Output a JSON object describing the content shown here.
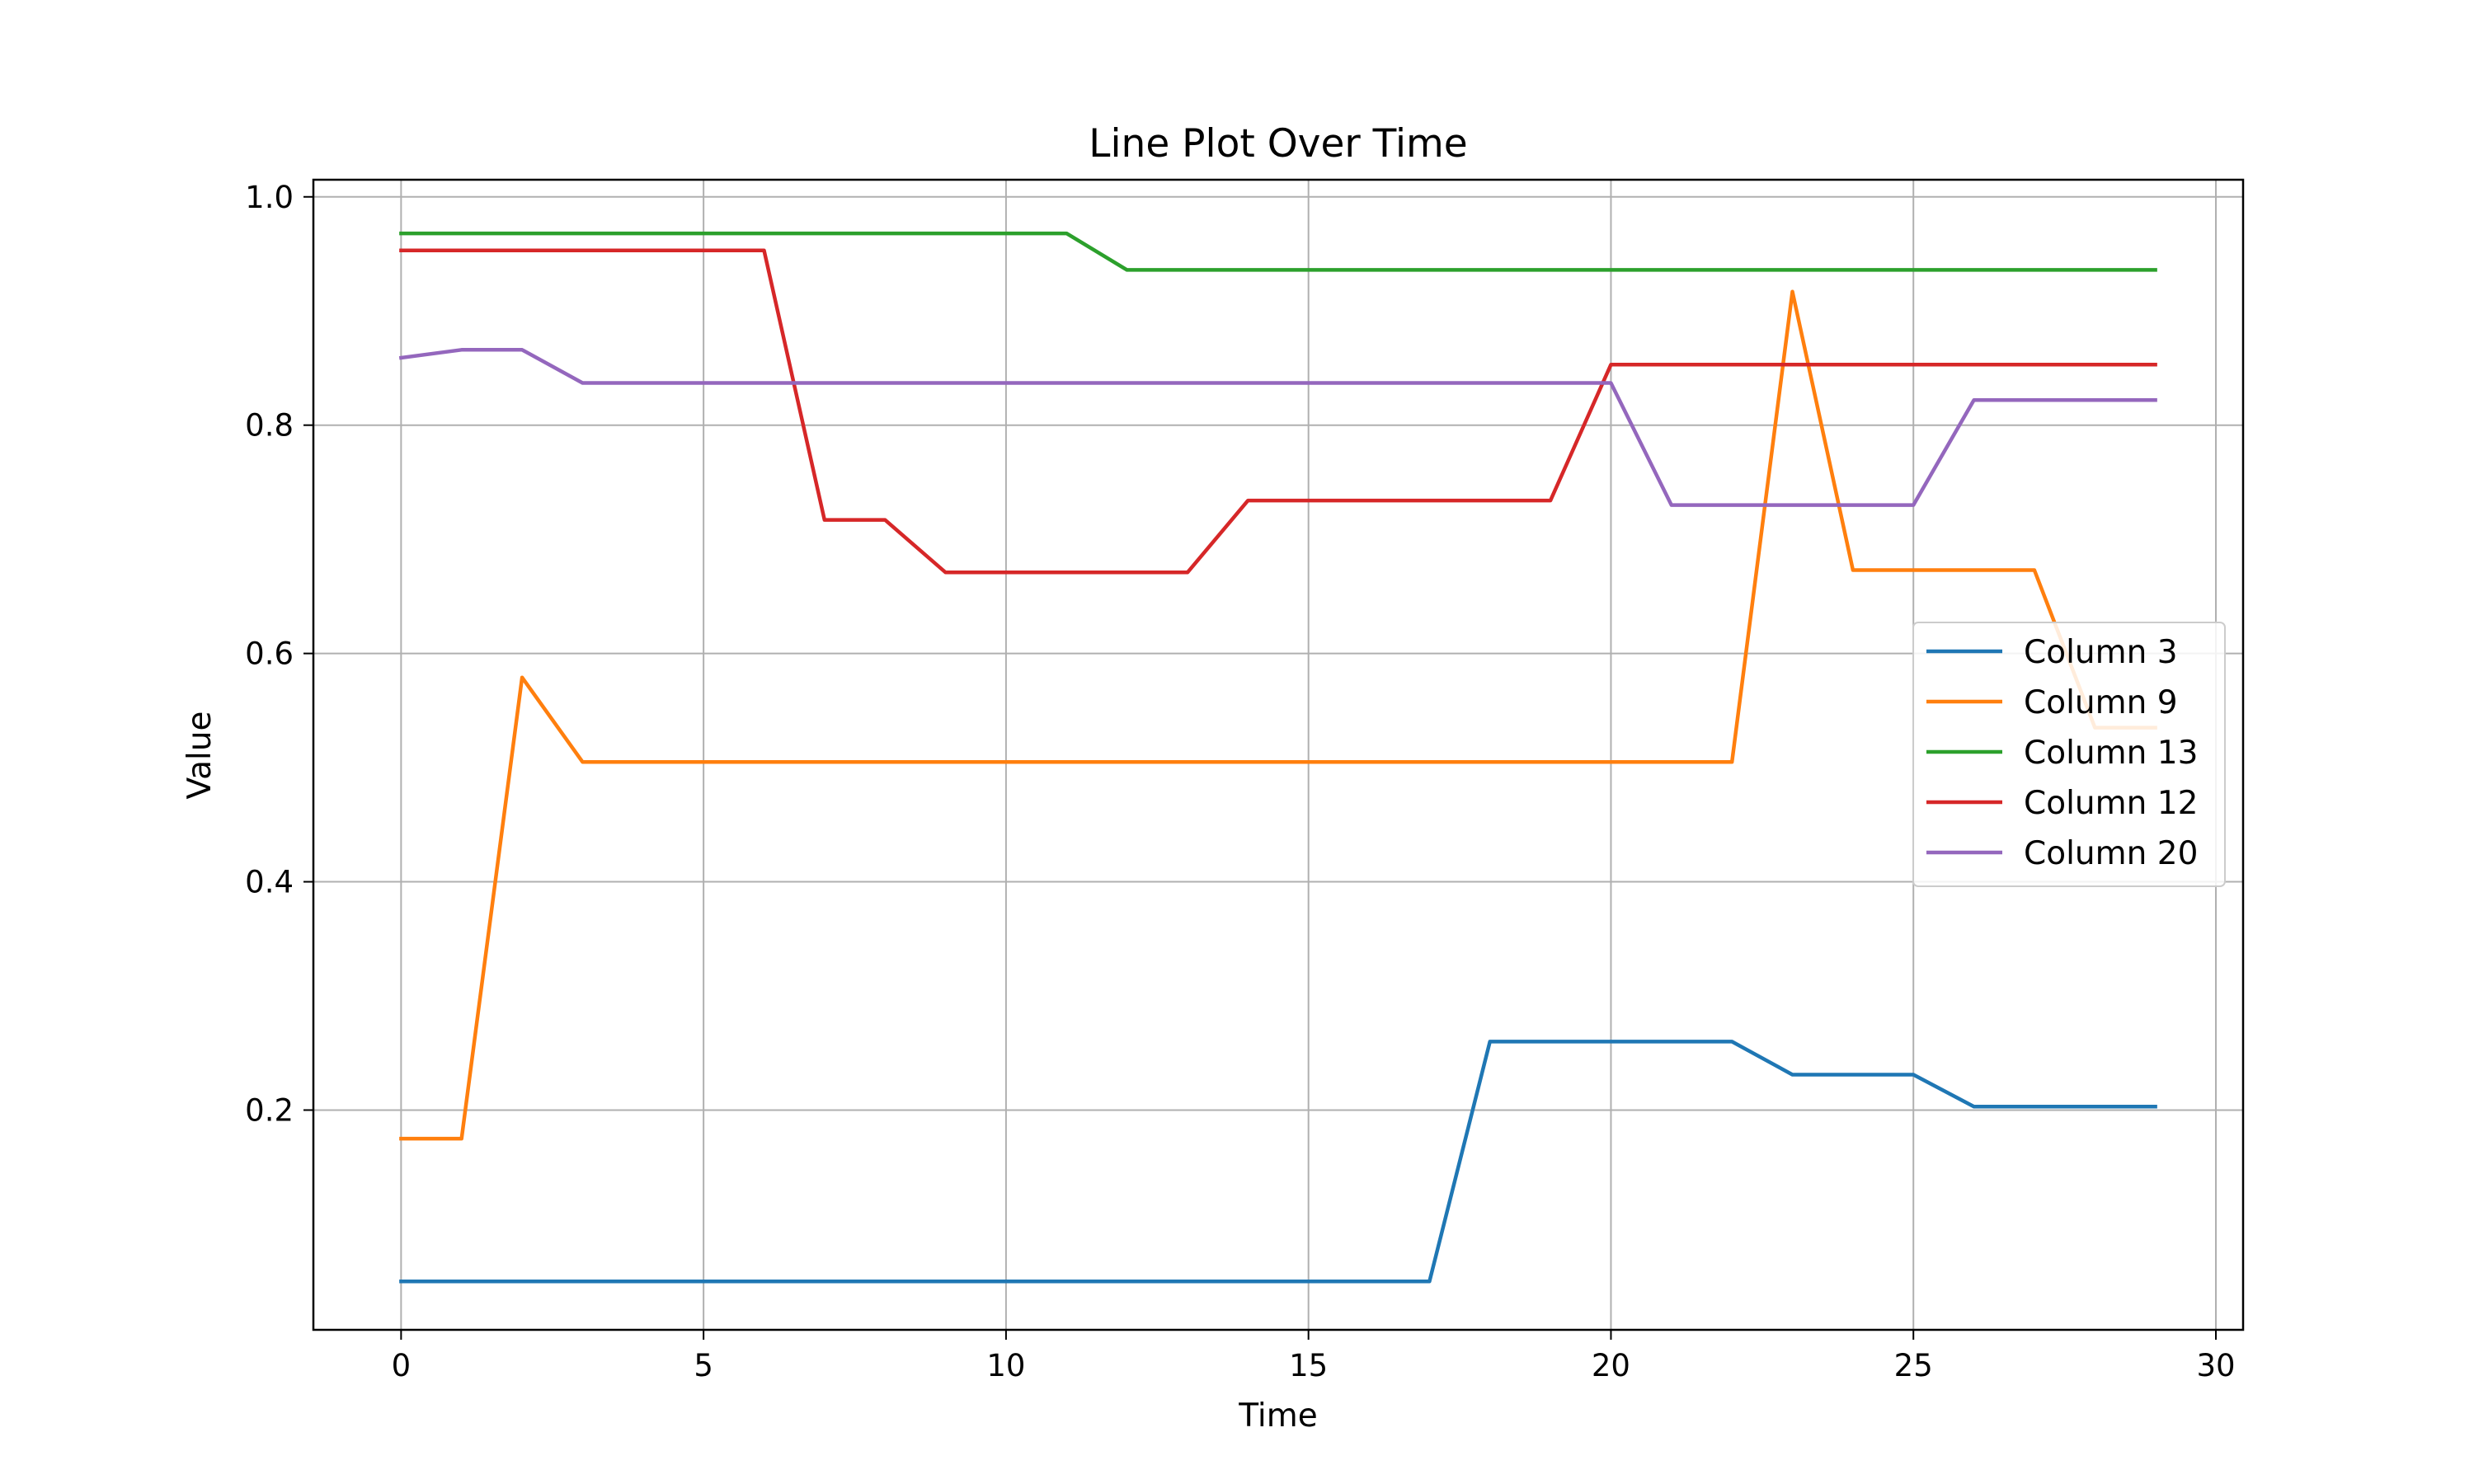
{
  "chart_data": {
    "type": "line",
    "title": "Line Plot Over Time",
    "xlabel": "Time",
    "ylabel": "Value",
    "xlim": [
      -1.45,
      30.45
    ],
    "ylim": [
      0.0075,
      1.015
    ],
    "xticks": [
      0,
      5,
      10,
      15,
      20,
      25,
      30
    ],
    "xtick_labels": [
      "0",
      "5",
      "10",
      "15",
      "20",
      "25",
      "30"
    ],
    "yticks": [
      0.2,
      0.4,
      0.6,
      0.8,
      1.0
    ],
    "ytick_labels": [
      "0.2",
      "0.4",
      "0.6",
      "0.8",
      "1.0"
    ],
    "grid": true,
    "legend_position": "center-right",
    "x": [
      0,
      1,
      2,
      3,
      4,
      5,
      6,
      7,
      8,
      9,
      10,
      11,
      12,
      13,
      14,
      15,
      16,
      17,
      18,
      19,
      20,
      21,
      22,
      23,
      24,
      25,
      26,
      27,
      28,
      29
    ],
    "series": [
      {
        "name": "Column 3",
        "color": "#1f77b4",
        "values": [
          0.05,
          0.05,
          0.05,
          0.05,
          0.05,
          0.05,
          0.05,
          0.05,
          0.05,
          0.05,
          0.05,
          0.05,
          0.05,
          0.05,
          0.05,
          0.05,
          0.05,
          0.05,
          0.26,
          0.26,
          0.26,
          0.26,
          0.26,
          0.231,
          0.231,
          0.231,
          0.203,
          0.203,
          0.203,
          0.203
        ]
      },
      {
        "name": "Column 9",
        "color": "#ff7f0e",
        "values": [
          0.175,
          0.175,
          0.579,
          0.505,
          0.505,
          0.505,
          0.505,
          0.505,
          0.505,
          0.505,
          0.505,
          0.505,
          0.505,
          0.505,
          0.505,
          0.505,
          0.505,
          0.505,
          0.505,
          0.505,
          0.505,
          0.505,
          0.505,
          0.917,
          0.673,
          0.673,
          0.673,
          0.673,
          0.535,
          0.535
        ]
      },
      {
        "name": "Column 13",
        "color": "#2ca02c",
        "values": [
          0.968,
          0.968,
          0.968,
          0.968,
          0.968,
          0.968,
          0.968,
          0.968,
          0.968,
          0.968,
          0.968,
          0.968,
          0.936,
          0.936,
          0.936,
          0.936,
          0.936,
          0.936,
          0.936,
          0.936,
          0.936,
          0.936,
          0.936,
          0.936,
          0.936,
          0.936,
          0.936,
          0.936,
          0.936,
          0.936
        ]
      },
      {
        "name": "Column 12",
        "color": "#d62728",
        "values": [
          0.953,
          0.953,
          0.953,
          0.953,
          0.953,
          0.953,
          0.953,
          0.717,
          0.717,
          0.671,
          0.671,
          0.671,
          0.671,
          0.671,
          0.734,
          0.734,
          0.734,
          0.734,
          0.734,
          0.734,
          0.853,
          0.853,
          0.853,
          0.853,
          0.853,
          0.853,
          0.853,
          0.853,
          0.853,
          0.853
        ]
      },
      {
        "name": "Column 20",
        "color": "#9467bd",
        "values": [
          0.859,
          0.866,
          0.866,
          0.837,
          0.837,
          0.837,
          0.837,
          0.837,
          0.837,
          0.837,
          0.837,
          0.837,
          0.837,
          0.837,
          0.837,
          0.837,
          0.837,
          0.837,
          0.837,
          0.837,
          0.837,
          0.73,
          0.73,
          0.73,
          0.73,
          0.73,
          0.822,
          0.822,
          0.822,
          0.822
        ]
      }
    ]
  }
}
